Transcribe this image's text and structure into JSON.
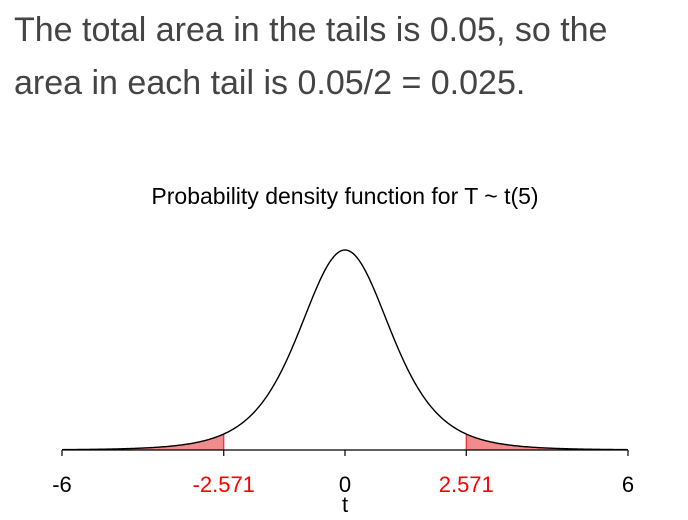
{
  "intro": {
    "line1": "The total area in the tails is 0.05, so the",
    "line2": "area in each tail is 0.05/2 = 0.025."
  },
  "chart_data": {
    "type": "area",
    "title": "Probability density function for T ~ t(5)",
    "xlabel": "t",
    "ylabel": "",
    "df": 5,
    "xlim": [
      -6,
      6
    ],
    "ylim": [
      0,
      0.3796
    ],
    "grid": false,
    "critical_value": 2.571,
    "tail_area_each": 0.025,
    "tail_area_total": 0.05,
    "ticks": [
      {
        "value": -6,
        "label": "-6",
        "color": "#000000"
      },
      {
        "value": -2.571,
        "label": "-2.571",
        "color": "#ff0000"
      },
      {
        "value": 0,
        "label": "0",
        "color": "#000000"
      },
      {
        "value": 2.571,
        "label": "2.571",
        "color": "#ff0000"
      },
      {
        "value": 6,
        "label": "6",
        "color": "#000000"
      }
    ],
    "colors": {
      "curve": "#000000",
      "tail_fill": "#f28b8b",
      "tail_edge": "#e03030",
      "critical_label": "#ff0000"
    }
  }
}
